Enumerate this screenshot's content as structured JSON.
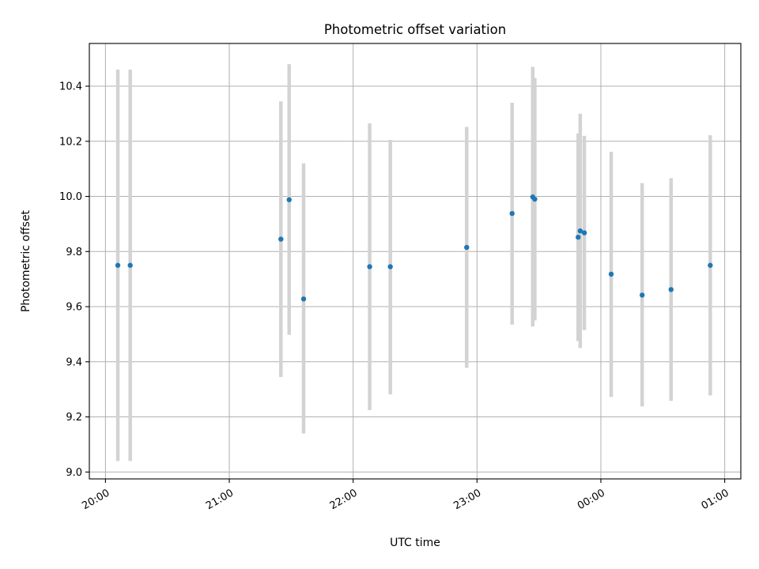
{
  "chart_data": {
    "type": "scatter",
    "title": "Photometric offset variation",
    "xlabel": "UTC time",
    "ylabel": "Photometric offset",
    "x_tick_labels": [
      "20:00",
      "21:00",
      "22:00",
      "23:00",
      "00:00",
      "01:00"
    ],
    "x_tick_hours": [
      20,
      21,
      22,
      23,
      24,
      25
    ],
    "xlim_hours": [
      19.87,
      25.13
    ],
    "y_ticks": [
      9.0,
      9.2,
      9.4,
      9.6,
      9.8,
      10.0,
      10.2,
      10.4
    ],
    "ylim": [
      8.975,
      10.555
    ],
    "grid": true,
    "marker_color": "#1f77b4",
    "errorbar_color": "#d3d3d3",
    "series": [
      {
        "points": [
          {
            "x": "20:06",
            "y": 9.75,
            "ylow": 9.04,
            "yhigh": 10.46
          },
          {
            "x": "20:12",
            "y": 9.75,
            "ylow": 9.04,
            "yhigh": 10.46
          },
          {
            "x": "21:25",
            "y": 9.845,
            "ylow": 9.345,
            "yhigh": 10.345
          },
          {
            "x": "21:29",
            "y": 9.988,
            "ylow": 9.498,
            "yhigh": 10.48
          },
          {
            "x": "21:36",
            "y": 9.628,
            "ylow": 9.14,
            "yhigh": 10.12
          },
          {
            "x": "22:08",
            "y": 9.745,
            "ylow": 9.225,
            "yhigh": 10.265
          },
          {
            "x": "22:18",
            "y": 9.745,
            "ylow": 9.282,
            "yhigh": 10.205
          },
          {
            "x": "22:55",
            "y": 9.815,
            "ylow": 9.378,
            "yhigh": 10.252
          },
          {
            "x": "23:17",
            "y": 9.938,
            "ylow": 9.535,
            "yhigh": 10.34
          },
          {
            "x": "23:27",
            "y": 9.998,
            "ylow": 9.528,
            "yhigh": 10.47
          },
          {
            "x": "23:28",
            "y": 9.99,
            "ylow": 9.55,
            "yhigh": 10.43
          },
          {
            "x": "23:49",
            "y": 9.852,
            "ylow": 9.475,
            "yhigh": 10.228
          },
          {
            "x": "23:50",
            "y": 9.875,
            "ylow": 9.45,
            "yhigh": 10.3
          },
          {
            "x": "23:52",
            "y": 9.868,
            "ylow": 9.515,
            "yhigh": 10.22
          },
          {
            "x": "00:05",
            "y": 9.718,
            "ylow": 9.272,
            "yhigh": 10.162
          },
          {
            "x": "00:20",
            "y": 9.642,
            "ylow": 9.238,
            "yhigh": 10.048
          },
          {
            "x": "00:34",
            "y": 9.662,
            "ylow": 9.258,
            "yhigh": 10.066
          },
          {
            "x": "00:53",
            "y": 9.75,
            "ylow": 9.278,
            "yhigh": 10.222
          }
        ]
      }
    ]
  }
}
